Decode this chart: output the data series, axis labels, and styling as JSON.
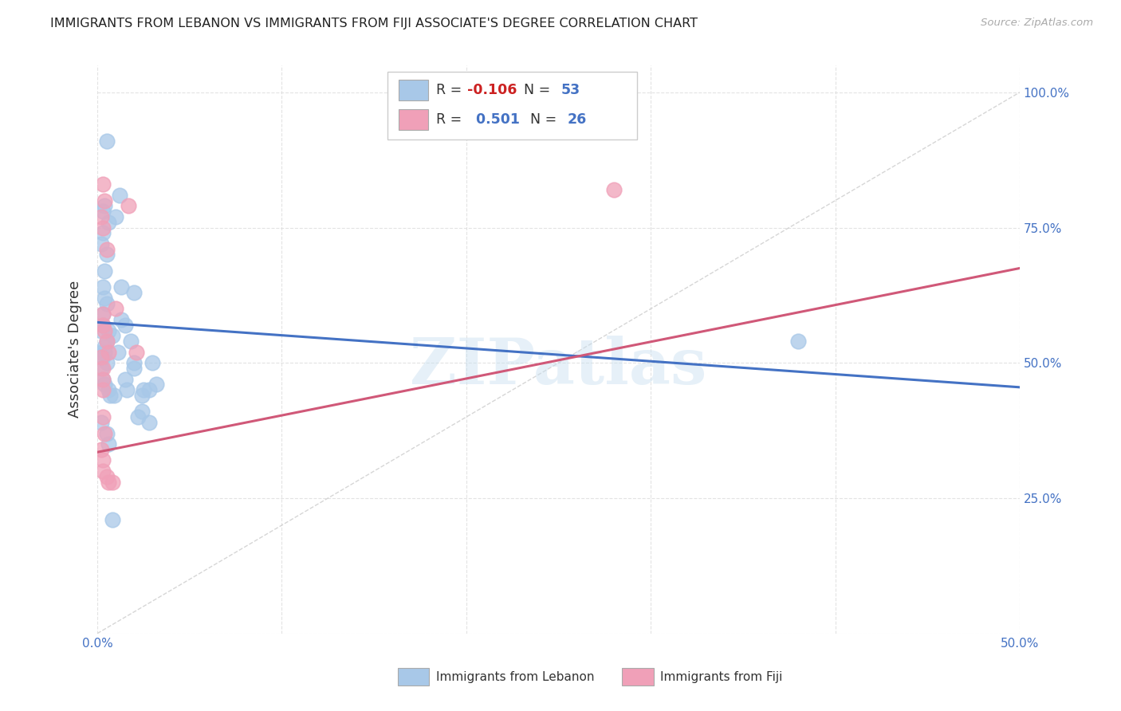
{
  "title": "IMMIGRANTS FROM LEBANON VS IMMIGRANTS FROM FIJI ASSOCIATE'S DEGREE CORRELATION CHART",
  "source": "Source: ZipAtlas.com",
  "ylabel": "Associate's Degree",
  "xlim": [
    0.0,
    0.5
  ],
  "ylim": [
    0.0,
    1.05
  ],
  "lebanon_R": -0.106,
  "lebanon_N": 53,
  "fiji_R": 0.501,
  "fiji_N": 26,
  "lebanon_color": "#a8c8e8",
  "fiji_color": "#f0a0b8",
  "lebanon_line_color": "#4472c4",
  "fiji_line_color": "#d05878",
  "lebanon_line_y0": 0.575,
  "lebanon_line_y1": 0.455,
  "fiji_line_y0": 0.335,
  "fiji_line_y1": 0.675,
  "lebanon_scatter_x": [
    0.005,
    0.012,
    0.004,
    0.003,
    0.006,
    0.003,
    0.002,
    0.005,
    0.004,
    0.003,
    0.004,
    0.005,
    0.003,
    0.003,
    0.002,
    0.006,
    0.008,
    0.005,
    0.004,
    0.004,
    0.002,
    0.003,
    0.005,
    0.01,
    0.013,
    0.015,
    0.018,
    0.02,
    0.025,
    0.03,
    0.002,
    0.003,
    0.004,
    0.006,
    0.007,
    0.009,
    0.016,
    0.02,
    0.024,
    0.028,
    0.015,
    0.02,
    0.013,
    0.011,
    0.032,
    0.024,
    0.022,
    0.028,
    0.38,
    0.002,
    0.005,
    0.006,
    0.008
  ],
  "lebanon_scatter_y": [
    0.91,
    0.81,
    0.79,
    0.78,
    0.76,
    0.74,
    0.72,
    0.7,
    0.67,
    0.64,
    0.62,
    0.61,
    0.59,
    0.57,
    0.56,
    0.56,
    0.55,
    0.54,
    0.53,
    0.52,
    0.52,
    0.51,
    0.5,
    0.77,
    0.64,
    0.57,
    0.54,
    0.5,
    0.45,
    0.5,
    0.49,
    0.47,
    0.46,
    0.45,
    0.44,
    0.44,
    0.45,
    0.49,
    0.44,
    0.45,
    0.47,
    0.63,
    0.58,
    0.52,
    0.46,
    0.41,
    0.4,
    0.39,
    0.54,
    0.39,
    0.37,
    0.35,
    0.21
  ],
  "fiji_scatter_x": [
    0.003,
    0.004,
    0.002,
    0.003,
    0.005,
    0.003,
    0.003,
    0.004,
    0.005,
    0.006,
    0.002,
    0.003,
    0.01,
    0.017,
    0.021,
    0.003,
    0.003,
    0.003,
    0.004,
    0.002,
    0.003,
    0.003,
    0.005,
    0.006,
    0.008,
    0.28
  ],
  "fiji_scatter_y": [
    0.83,
    0.8,
    0.77,
    0.75,
    0.71,
    0.59,
    0.57,
    0.56,
    0.54,
    0.52,
    0.51,
    0.49,
    0.6,
    0.79,
    0.52,
    0.47,
    0.45,
    0.4,
    0.37,
    0.34,
    0.32,
    0.3,
    0.29,
    0.28,
    0.28,
    0.82
  ],
  "watermark": "ZIPatlas",
  "background_color": "#ffffff",
  "grid_color": "#dddddd"
}
